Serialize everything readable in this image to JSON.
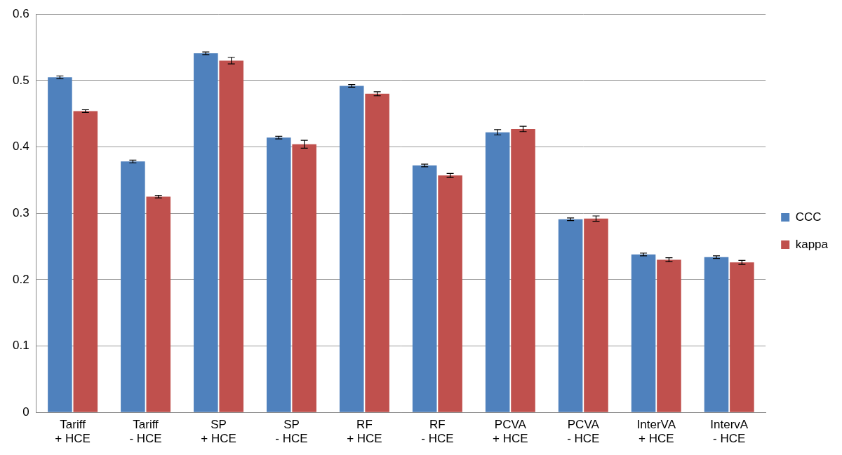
{
  "chart_data": {
    "type": "bar",
    "categories": [
      [
        "Tariff",
        "+ HCE"
      ],
      [
        "Tariff",
        "- HCE"
      ],
      [
        "SP",
        "+ HCE"
      ],
      [
        "SP",
        "- HCE"
      ],
      [
        "RF",
        "+ HCE"
      ],
      [
        "RF",
        "- HCE"
      ],
      [
        "PCVA",
        "+ HCE"
      ],
      [
        "PCVA",
        "- HCE"
      ],
      [
        "InterVA",
        "+ HCE"
      ],
      [
        "IntervA",
        "- HCE"
      ]
    ],
    "series": [
      {
        "name": "CCC",
        "color": "#4f81bd",
        "values": [
          0.505,
          0.378,
          0.541,
          0.414,
          0.492,
          0.372,
          0.422,
          0.291,
          0.238,
          0.234
        ],
        "errors": [
          0.002,
          0.002,
          0.002,
          0.002,
          0.002,
          0.002,
          0.004,
          0.002,
          0.002,
          0.002
        ]
      },
      {
        "name": "kappa",
        "color": "#c0504d",
        "values": [
          0.454,
          0.325,
          0.53,
          0.404,
          0.48,
          0.357,
          0.427,
          0.292,
          0.23,
          0.226
        ],
        "errors": [
          0.002,
          0.002,
          0.005,
          0.006,
          0.003,
          0.003,
          0.004,
          0.004,
          0.003,
          0.003
        ]
      }
    ],
    "ylim": [
      0,
      0.6
    ],
    "yticks": [
      0,
      0.1,
      0.2,
      0.3,
      0.4,
      0.5,
      0.6
    ],
    "grid": true,
    "legend": "right"
  }
}
